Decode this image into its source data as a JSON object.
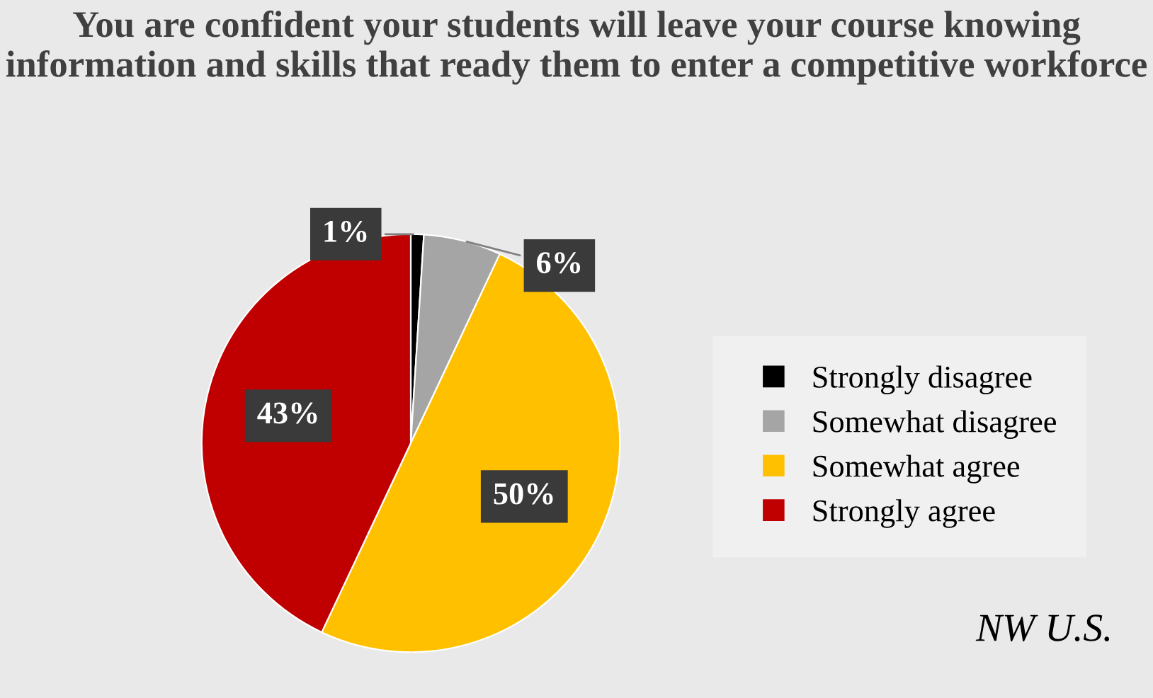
{
  "chart_data": {
    "type": "pie",
    "title": "You are confident your students will leave your course knowing information and skills that ready them to enter a competitive workforce",
    "categories": [
      "Strongly disagree",
      "Somewhat disagree",
      "Somewhat agree",
      "Strongly agree"
    ],
    "values": [
      1,
      6,
      50,
      43
    ],
    "colors": [
      "#000000",
      "#a5a5a5",
      "#ffc000",
      "#c00000"
    ],
    "value_labels": [
      "1%",
      "6%",
      "50%",
      "43%"
    ],
    "legend": "right",
    "annotations": [
      "NW U.S."
    ]
  }
}
